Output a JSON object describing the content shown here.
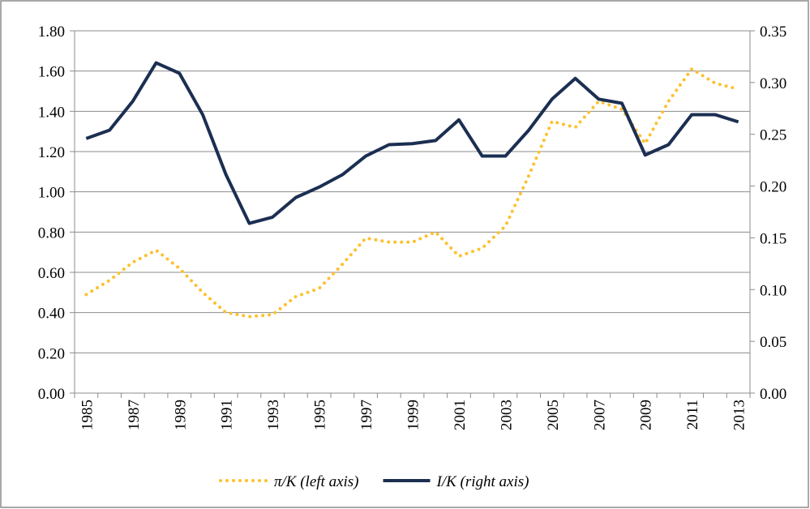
{
  "chart_data": {
    "type": "line",
    "categories": [
      "1985",
      null,
      "1987",
      null,
      "1989",
      null,
      "1991",
      null,
      "1993",
      null,
      "1995",
      null,
      "1997",
      null,
      "1999",
      null,
      "2001",
      null,
      "2003",
      null,
      "2005",
      null,
      "2007",
      null,
      "2009",
      null,
      "2011",
      null,
      "2013"
    ],
    "series": [
      {
        "name": "π/K (left axis)",
        "color": "#fcc12d",
        "axis": "y",
        "dash": "dotted",
        "values": [
          0.49,
          0.56,
          0.65,
          0.71,
          0.62,
          0.5,
          0.4,
          0.38,
          0.39,
          0.48,
          0.52,
          0.64,
          0.77,
          0.75,
          0.75,
          0.8,
          0.68,
          0.72,
          0.83,
          1.08,
          1.35,
          1.32,
          1.45,
          1.41,
          1.24,
          1.45,
          1.61,
          1.54,
          1.51
        ]
      },
      {
        "name": "I/K (right axis)",
        "color": "#1b2f52",
        "axis": "y2",
        "dash": "solid",
        "values": [
          0.246,
          0.254,
          0.282,
          0.319,
          0.309,
          0.269,
          0.211,
          0.164,
          0.17,
          0.189,
          0.199,
          0.211,
          0.229,
          0.24,
          0.241,
          0.244,
          0.264,
          0.229,
          0.229,
          0.254,
          0.284,
          0.304,
          0.284,
          0.28,
          0.23,
          0.24,
          0.269,
          0.269,
          0.262
        ]
      }
    ],
    "ylim": [
      0,
      1.8
    ],
    "yticks": [
      {
        "value": 0,
        "label": "0.00"
      },
      {
        "value": 0.2,
        "label": "0.20"
      },
      {
        "value": 0.4,
        "label": "0.40"
      },
      {
        "value": 0.6,
        "label": "0.60"
      },
      {
        "value": 0.8,
        "label": "0.80"
      },
      {
        "value": 1,
        "label": "1.00"
      },
      {
        "value": 1.2,
        "label": "1.20"
      },
      {
        "value": 1.4,
        "label": "1.40"
      },
      {
        "value": 1.6,
        "label": "1.60"
      },
      {
        "value": 1.8,
        "label": "1.80"
      }
    ],
    "y2lim": [
      0,
      0.35
    ],
    "y2ticks": [
      {
        "value": 0,
        "label": "0.00"
      },
      0.05,
      {
        "value": 0.1,
        "label": "0.10"
      },
      0.15,
      {
        "value": 0.2,
        "label": "0.20"
      },
      0.25,
      {
        "value": 0.3,
        "label": "0.30"
      },
      0.35
    ],
    "grid": true,
    "legend": "bottom"
  }
}
